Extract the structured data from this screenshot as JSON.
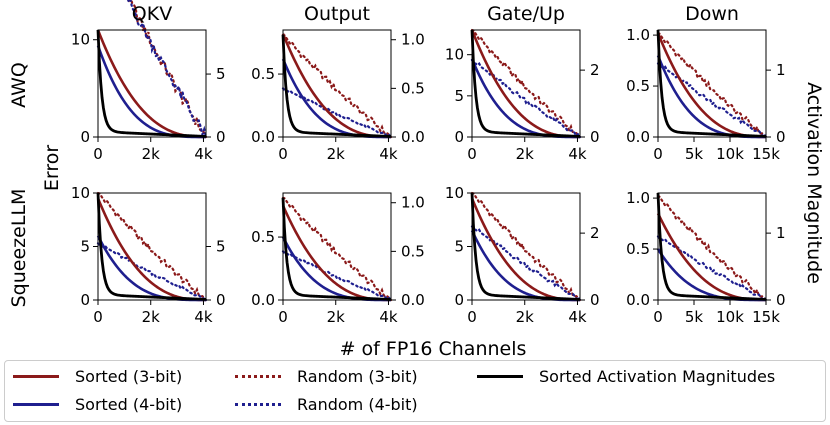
{
  "figure": {
    "xlabel": "# of FP16 Channels",
    "ylabel_left": "Error",
    "ylabel_right": "Activation Magnitude"
  },
  "colors": {
    "red": "#8b1a1a",
    "blue": "#1f1f8f",
    "black": "#000000"
  },
  "legend": {
    "items": [
      {
        "label": "Sorted (3-bit)",
        "color": "#8b1a1a",
        "style": "solid"
      },
      {
        "label": "Random (3-bit)",
        "color": "#8b1a1a",
        "style": "dotted"
      },
      {
        "label": "Sorted Activation Magnitudes",
        "color": "#000000",
        "style": "solid"
      },
      {
        "label": "Sorted (4-bit)",
        "color": "#1f1f8f",
        "style": "solid"
      },
      {
        "label": "Random (4-bit)",
        "color": "#1f1f8f",
        "style": "dotted"
      }
    ]
  },
  "chart_data": [
    {
      "type": "line",
      "row": "AWQ",
      "title": "QKV",
      "xlim": [
        0,
        4096
      ],
      "xticks": [
        0,
        2000,
        4000
      ],
      "xticklabels": [
        "0",
        "2k",
        "4k"
      ],
      "ylim_left": [
        0,
        11
      ],
      "yticks_left": [
        0,
        10
      ],
      "ylim_right": [
        0,
        8.5
      ],
      "yticks_right": [
        0,
        5
      ],
      "y_right_max": 8.5,
      "red_sorted_start": 11,
      "blue_sorted_start": 9.4,
      "red_random_start": 16,
      "blue_random_start": 15.5
    },
    {
      "type": "line",
      "row": "AWQ",
      "title": "Output",
      "xlim": [
        0,
        4096
      ],
      "xticks": [
        0,
        2000,
        4000
      ],
      "xticklabels": [
        "0",
        "2k",
        "4k"
      ],
      "ylim_left": [
        0,
        0.85
      ],
      "yticks_left": [
        0.0,
        0.5
      ],
      "yticklabels_left": [
        "0.0",
        "0.5"
      ],
      "ylim_right": [
        0,
        1.1
      ],
      "yticks_right": [
        0.0,
        0.5,
        1.0
      ],
      "yticklabels_right": [
        "0.0",
        "0.5",
        "1.0"
      ],
      "y_right_max": 1.05,
      "red_sorted_start": 0.82,
      "blue_sorted_start": 0.62,
      "red_random_start": 1.05,
      "blue_random_start": 0.5
    },
    {
      "type": "line",
      "row": "AWQ",
      "title": "Gate/Up",
      "xlim": [
        0,
        4096
      ],
      "xticks": [
        0,
        2000,
        4000
      ],
      "xticklabels": [
        "0",
        "2k",
        "4k"
      ],
      "ylim_left": [
        0,
        13
      ],
      "yticks_left": [
        0,
        5,
        10
      ],
      "ylim_right": [
        0,
        3.2
      ],
      "yticks_right": [
        0,
        2
      ],
      "y_right_max": 3.2,
      "red_sorted_start": 13,
      "blue_sorted_start": 9.5,
      "red_random_start": 3.2,
      "blue_random_start": 2.3
    },
    {
      "type": "line",
      "row": "AWQ",
      "title": "Down",
      "xlim": [
        0,
        15000
      ],
      "xticks": [
        0,
        5000,
        10000,
        15000
      ],
      "xticklabels": [
        "0",
        "5k",
        "10k",
        "15k"
      ],
      "ylim_left": [
        0,
        1.05
      ],
      "yticks_left": [
        0.0,
        0.5,
        1.0
      ],
      "yticklabels_left": [
        "0.0",
        "0.5",
        "1.0"
      ],
      "ylim_right": [
        0,
        1.6
      ],
      "yticks_right": [
        0,
        1
      ],
      "y_right_max": 1.6,
      "red_sorted_start": 1.02,
      "blue_sorted_start": 0.8,
      "red_random_start": 1.55,
      "blue_random_start": 1.1
    },
    {
      "type": "line",
      "row": "SqueezeLLM",
      "title": "",
      "xlim": [
        0,
        4096
      ],
      "xticks": [
        0,
        2000,
        4000
      ],
      "xticklabels": [
        "0",
        "2k",
        "4k"
      ],
      "ylim_left": [
        0,
        10
      ],
      "yticks_left": [
        0,
        5,
        10
      ],
      "ylim_right": [
        0,
        10
      ],
      "yticks_right": [
        0,
        5
      ],
      "y_right_max": 10,
      "red_sorted_start": 9.5,
      "blue_sorted_start": 6.0,
      "red_random_start": 10,
      "blue_random_start": 5.3
    },
    {
      "type": "line",
      "row": "SqueezeLLM",
      "title": "",
      "xlim": [
        0,
        4096
      ],
      "xticks": [
        0,
        2000,
        4000
      ],
      "xticklabels": [
        "0",
        "2k",
        "4k"
      ],
      "ylim_left": [
        0,
        0.85
      ],
      "yticks_left": [
        0.0,
        0.5
      ],
      "yticklabels_left": [
        "0.0",
        "0.5"
      ],
      "ylim_right": [
        0,
        1.1
      ],
      "yticks_right": [
        0.0,
        0.5,
        1.0
      ],
      "yticklabels_right": [
        "0.0",
        "0.5",
        "1.0"
      ],
      "y_right_max": 1.05,
      "red_sorted_start": 0.75,
      "blue_sorted_start": 0.5,
      "red_random_start": 1.05,
      "blue_random_start": 0.5
    },
    {
      "type": "line",
      "row": "SqueezeLLM",
      "title": "",
      "xlim": [
        0,
        4096
      ],
      "xticks": [
        0,
        2000,
        4000
      ],
      "xticklabels": [
        "0",
        "2k",
        "4k"
      ],
      "ylim_left": [
        0,
        10
      ],
      "yticks_left": [
        0,
        5,
        10
      ],
      "ylim_right": [
        0,
        3.2
      ],
      "yticks_right": [
        0,
        2
      ],
      "y_right_max": 3.2,
      "red_sorted_start": 9.5,
      "blue_sorted_start": 6.5,
      "red_random_start": 3.2,
      "blue_random_start": 2.2
    },
    {
      "type": "line",
      "row": "SqueezeLLM",
      "title": "",
      "xlim": [
        0,
        15000
      ],
      "xticks": [
        0,
        5000,
        10000,
        15000
      ],
      "xticklabels": [
        "0",
        "5k",
        "10k",
        "15k"
      ],
      "ylim_left": [
        0,
        1.05
      ],
      "yticks_left": [
        0.0,
        0.5,
        1.0
      ],
      "yticklabels_left": [
        "0.0",
        "0.5",
        "1.0"
      ],
      "ylim_right": [
        0,
        1.6
      ],
      "yticks_right": [
        0,
        1
      ],
      "y_right_max": 1.6,
      "red_sorted_start": 0.85,
      "blue_sorted_start": 0.5,
      "red_random_start": 1.55,
      "blue_random_start": 0.95
    }
  ]
}
